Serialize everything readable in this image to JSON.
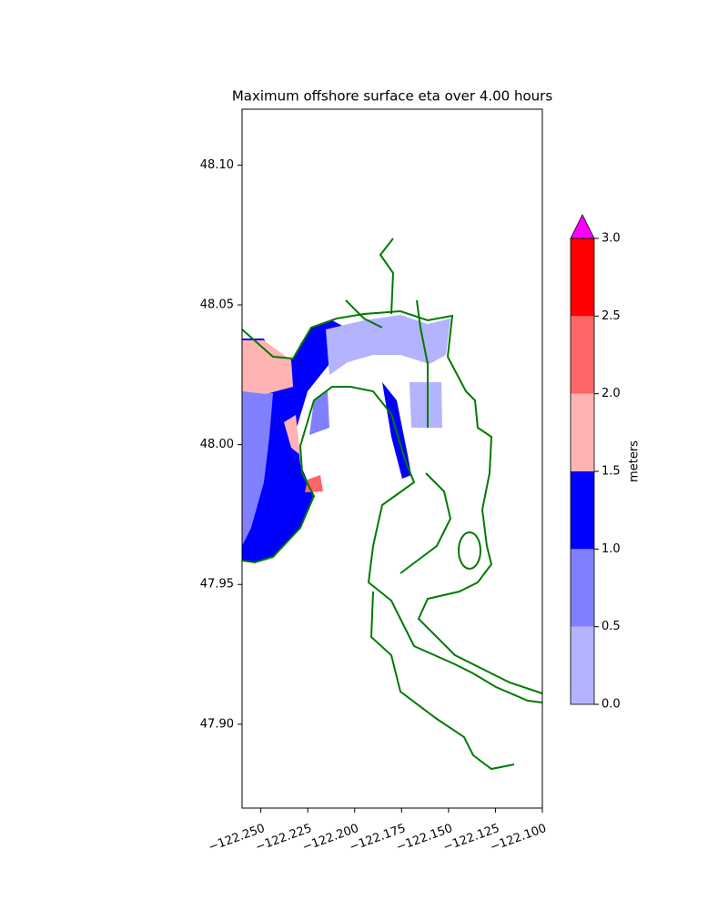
{
  "chart_data": {
    "type": "contour",
    "title": "Maximum offshore surface eta over 4.00 hours",
    "xlim": [
      -122.26,
      -122.1
    ],
    "ylim": [
      47.87,
      48.12
    ],
    "xticks": [
      {
        "value": -122.25,
        "label": "−122.250"
      },
      {
        "value": -122.225,
        "label": "−122.225"
      },
      {
        "value": -122.2,
        "label": "−122.200"
      },
      {
        "value": -122.175,
        "label": "−122.175"
      },
      {
        "value": -122.15,
        "label": "−122.150"
      },
      {
        "value": -122.125,
        "label": "−122.125"
      },
      {
        "value": -122.1,
        "label": "−122.100"
      }
    ],
    "yticks": [
      {
        "value": 47.9,
        "label": "47.90"
      },
      47.95,
      {
        "value": 48.0,
        "label": "48.00"
      },
      48.05,
      {
        "value": 48.1,
        "label": "48.10"
      }
    ],
    "colorbar": {
      "label": "meters",
      "levels": [
        {
          "value": 0,
          "label": "0.0"
        },
        0.5,
        {
          "value": 1,
          "label": "1.0"
        },
        1.5,
        {
          "value": 2,
          "label": "2.0"
        },
        2.5,
        {
          "value": 3,
          "label": "3.0"
        }
      ],
      "colors": [
        "#b3b3ff",
        "#8080ff",
        "#0000ff",
        "#ffb3b3",
        "#ff6666",
        "#ff0000"
      ],
      "extend_color": "#ff00ff"
    }
  }
}
